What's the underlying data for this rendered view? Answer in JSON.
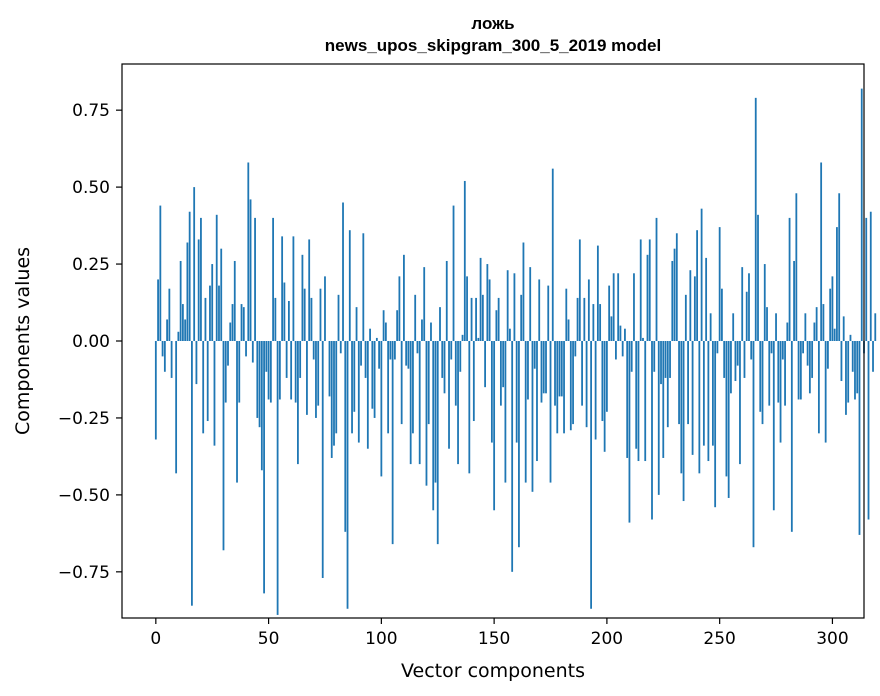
{
  "chart_data": {
    "type": "bar",
    "title_lines": [
      "ложь",
      "news_upos_skipgram_300_5_2019 model"
    ],
    "xlabel": "Vector components",
    "ylabel": "Components values",
    "xlim": [
      -15,
      314
    ],
    "ylim": [
      -0.9,
      0.9
    ],
    "xticks": [
      0,
      50,
      100,
      150,
      200,
      250,
      300
    ],
    "xtick_labels": [
      "0",
      "50",
      "100",
      "150",
      "200",
      "250",
      "300"
    ],
    "yticks": [
      -0.75,
      -0.5,
      -0.25,
      0.0,
      0.25,
      0.5,
      0.75
    ],
    "ytick_labels": [
      "−0.75",
      "−0.50",
      "−0.25",
      "0.00",
      "0.25",
      "0.50",
      "0.75"
    ],
    "bar_color": "#1f77b4",
    "grid": false,
    "series": [
      {
        "name": "ложь",
        "values": [
          -0.32,
          0.2,
          0.44,
          -0.05,
          -0.1,
          0.07,
          0.17,
          -0.12,
          0.0,
          -0.43,
          0.03,
          0.26,
          0.12,
          0.07,
          0.32,
          0.42,
          -0.86,
          0.5,
          -0.14,
          0.33,
          0.4,
          -0.3,
          0.14,
          -0.26,
          0.18,
          0.25,
          -0.34,
          0.41,
          0.18,
          0.3,
          -0.68,
          -0.2,
          -0.08,
          0.06,
          0.12,
          0.26,
          -0.46,
          -0.2,
          0.12,
          0.11,
          -0.05,
          0.58,
          0.46,
          -0.07,
          0.4,
          -0.25,
          -0.28,
          -0.42,
          -0.82,
          -0.1,
          -0.19,
          -0.2,
          0.4,
          0.14,
          -0.89,
          -0.19,
          0.34,
          0.19,
          -0.12,
          0.13,
          -0.19,
          0.34,
          -0.2,
          -0.4,
          -0.12,
          0.28,
          0.17,
          -0.24,
          0.33,
          0.14,
          -0.06,
          -0.25,
          -0.21,
          0.17,
          -0.77,
          0.21,
          0.0,
          -0.18,
          -0.38,
          -0.34,
          -0.3,
          0.15,
          -0.04,
          0.45,
          -0.62,
          -0.87,
          0.36,
          -0.3,
          -0.23,
          0.11,
          -0.33,
          -0.08,
          0.35,
          -0.12,
          -0.35,
          0.04,
          -0.22,
          -0.25,
          0.01,
          -0.09,
          -0.44,
          0.1,
          0.06,
          -0.3,
          -0.06,
          -0.66,
          -0.06,
          0.1,
          0.21,
          -0.27,
          0.28,
          -0.08,
          -0.09,
          -0.4,
          -0.3,
          0.15,
          -0.04,
          -0.4,
          0.07,
          0.24,
          -0.47,
          -0.27,
          0.06,
          -0.55,
          -0.46,
          -0.66,
          0.11,
          -0.12,
          -0.17,
          0.26,
          -0.35,
          -0.06,
          0.44,
          -0.21,
          -0.4,
          -0.1,
          0.02,
          0.52,
          0.21,
          -0.43,
          0.14,
          -0.26,
          0.14,
          0.01,
          0.27,
          0.15,
          -0.15,
          0.25,
          0.2,
          -0.33,
          -0.55,
          0.1,
          0.14,
          -0.21,
          -0.15,
          -0.46,
          0.23,
          0.04,
          -0.75,
          0.22,
          -0.33,
          -0.67,
          0.15,
          0.32,
          -0.46,
          -0.19,
          0.24,
          -0.49,
          -0.09,
          -0.39,
          0.2,
          -0.2,
          -0.17,
          -0.17,
          0.18,
          -0.46,
          0.56,
          -0.21,
          -0.3,
          -0.18,
          -0.18,
          -0.3,
          0.17,
          0.07,
          -0.29,
          -0.27,
          -0.05,
          0.14,
          0.33,
          -0.21,
          0.14,
          -0.28,
          0.2,
          -0.87,
          0.12,
          -0.32,
          0.31,
          0.12,
          -0.26,
          -0.36,
          -0.23,
          0.18,
          0.08,
          0.22,
          -0.06,
          0.22,
          0.05,
          -0.05,
          0.04,
          -0.38,
          -0.59,
          -0.1,
          0.22,
          -0.35,
          -0.39,
          0.33,
          0.01,
          -0.39,
          0.28,
          0.33,
          -0.58,
          -0.1,
          0.4,
          -0.5,
          -0.14,
          -0.38,
          -0.12,
          -0.28,
          -0.12,
          0.26,
          0.3,
          0.35,
          -0.27,
          -0.43,
          -0.52,
          0.15,
          -0.27,
          0.23,
          -0.37,
          0.21,
          0.36,
          -0.43,
          0.43,
          -0.34,
          0.27,
          -0.39,
          0.09,
          -0.34,
          -0.54,
          -0.04,
          0.37,
          0.17,
          -0.12,
          -0.44,
          -0.51,
          -0.17,
          0.09,
          -0.13,
          -0.08,
          -0.4,
          0.24,
          -0.12,
          0.16,
          0.22,
          -0.06,
          -0.67,
          0.79,
          0.41,
          -0.23,
          -0.27,
          0.25,
          0.11,
          -0.21,
          -0.04,
          -0.55,
          0.09,
          -0.2,
          -0.33,
          -0.06,
          -0.21,
          0.06,
          0.4,
          -0.62,
          0.26,
          0.48,
          -0.19,
          -0.19,
          -0.04,
          0.09,
          -0.08,
          -0.17,
          -0.12,
          0.06,
          0.11,
          -0.3,
          0.58,
          0.12,
          -0.33,
          -0.09,
          0.17,
          0.21,
          0.04,
          0.37,
          0.48,
          -0.13,
          0.08,
          -0.24,
          -0.2,
          0.02,
          -0.1,
          -0.19,
          -0.17,
          -0.63,
          0.82,
          -0.04,
          0.4,
          -0.58,
          0.42,
          -0.1,
          0.09
        ]
      }
    ]
  }
}
